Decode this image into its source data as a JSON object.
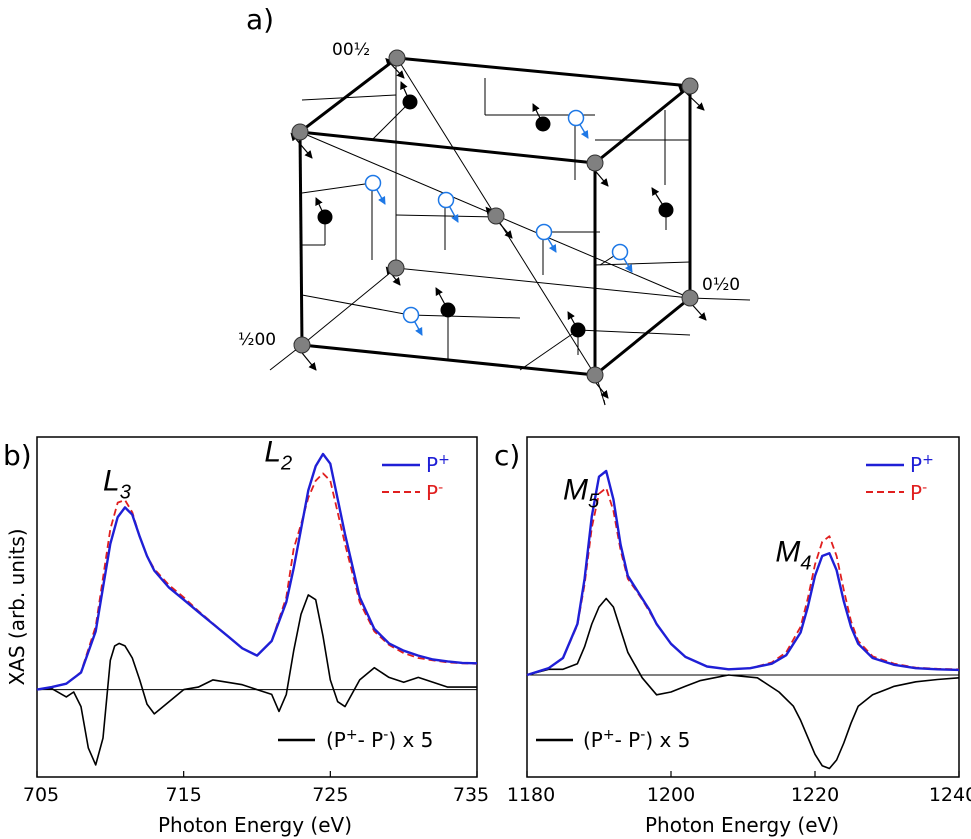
{
  "figure": {
    "cube": {
      "panel_label": "a)",
      "axis_label_c": "00½",
      "axis_label_b": "0½0",
      "axis_label_a": "½00",
      "colors": {
        "gray_atom": "#808080",
        "black_atom": "#000000",
        "open_atom": "#1e78e6"
      }
    },
    "legend": {
      "p_plus": "P",
      "p_plus_sup": "+",
      "p_minus": "P",
      "p_minus_sup": "-",
      "diff_prefix": "(P",
      "diff_mid": "- P",
      "diff_suffix": ") x 5",
      "diff_sup_plus": "+",
      "diff_sup_minus": "-"
    },
    "colors": {
      "p_plus": "#1f1fd6",
      "p_minus": "#e01f1f",
      "diff": "#000000"
    }
  },
  "chart_data": [
    {
      "panel_label": "b)",
      "type": "line",
      "xlabel": "Photon Energy (eV)",
      "ylabel": "XAS (arb. units)",
      "xlim": [
        705,
        735
      ],
      "ylim": [
        -1.8,
        5.2
      ],
      "xticks": [
        705,
        715,
        725,
        735
      ],
      "peaks": [
        {
          "label": "L",
          "sub": "3",
          "x": 709.5,
          "y": 4.1
        },
        {
          "label": "L",
          "sub": "2",
          "x": 720.5,
          "y": 4.7
        }
      ],
      "series": [
        {
          "name": "P+",
          "x": [
            705,
            706,
            707,
            708,
            709,
            709.5,
            710,
            710.5,
            711,
            711.5,
            712,
            712.5,
            713,
            714,
            715,
            716,
            717,
            718,
            719,
            720,
            721,
            722,
            722.5,
            723,
            723.5,
            724,
            724.5,
            725,
            726,
            727,
            728,
            729,
            730,
            731,
            732,
            733,
            734,
            735
          ],
          "values": [
            0.0,
            0.05,
            0.12,
            0.35,
            1.2,
            2.1,
            3.0,
            3.55,
            3.75,
            3.6,
            3.15,
            2.75,
            2.45,
            2.1,
            1.85,
            1.6,
            1.35,
            1.1,
            0.85,
            0.7,
            1.0,
            1.8,
            2.5,
            3.3,
            4.1,
            4.6,
            4.85,
            4.65,
            3.2,
            1.9,
            1.25,
            0.95,
            0.8,
            0.7,
            0.62,
            0.58,
            0.55,
            0.54
          ]
        },
        {
          "name": "P-",
          "x": [
            705,
            706,
            707,
            708,
            709,
            709.5,
            710,
            710.5,
            711,
            711.5,
            712,
            712.5,
            713,
            714,
            715,
            716,
            717,
            718,
            719,
            720,
            721,
            722,
            722.5,
            723,
            723.5,
            724,
            724.5,
            725,
            726,
            727,
            728,
            729,
            730,
            731,
            732,
            733,
            734,
            735
          ],
          "values": [
            0.0,
            0.05,
            0.12,
            0.36,
            1.3,
            2.3,
            3.3,
            3.85,
            3.9,
            3.65,
            3.15,
            2.75,
            2.48,
            2.15,
            1.9,
            1.62,
            1.36,
            1.1,
            0.85,
            0.7,
            1.0,
            1.9,
            2.9,
            3.4,
            3.95,
            4.3,
            4.45,
            4.3,
            3.0,
            1.8,
            1.2,
            0.92,
            0.75,
            0.65,
            0.6,
            0.56,
            0.54,
            0.53
          ]
        },
        {
          "name": "(P+ - P-) x 5",
          "x": [
            705,
            706,
            707,
            707.5,
            708,
            708.5,
            709,
            709.5,
            710,
            710.3,
            710.6,
            711,
            711.5,
            712,
            712.5,
            713,
            714,
            715,
            716,
            717,
            718,
            719,
            720,
            721,
            721.5,
            722,
            722.5,
            723,
            723.5,
            724,
            724.5,
            725,
            725.5,
            726,
            727,
            728,
            729,
            730,
            731,
            732,
            733,
            734,
            735
          ],
          "values": [
            0.0,
            0.02,
            -0.15,
            -0.05,
            -0.35,
            -1.2,
            -1.55,
            -1.0,
            0.6,
            0.9,
            0.95,
            0.9,
            0.65,
            0.2,
            -0.3,
            -0.5,
            -0.25,
            0.0,
            0.05,
            0.2,
            0.15,
            0.1,
            0.0,
            -0.1,
            -0.45,
            -0.1,
            0.8,
            1.55,
            1.95,
            1.85,
            1.1,
            0.2,
            -0.25,
            -0.35,
            0.2,
            0.45,
            0.25,
            0.15,
            0.25,
            0.15,
            0.05,
            0.05,
            0.05
          ]
        }
      ]
    },
    {
      "panel_label": "c)",
      "type": "line",
      "xlabel": "Photon Energy (eV)",
      "ylabel": "",
      "xlim": [
        1180,
        1240
      ],
      "ylim": [
        -1.8,
        4.2
      ],
      "xticks": [
        1180,
        1200,
        1220,
        1240
      ],
      "peaks": [
        {
          "label": "M",
          "sub": "5",
          "x": 1185,
          "y": 3.1
        },
        {
          "label": "M",
          "sub": "4",
          "x": 1214.5,
          "y": 2.0
        }
      ],
      "series": [
        {
          "name": "P+",
          "x": [
            1180,
            1183,
            1185,
            1187,
            1188,
            1189,
            1190,
            1191,
            1192,
            1193,
            1194,
            1195,
            1196,
            1197,
            1198,
            1200,
            1202,
            1205,
            1208,
            1211,
            1214,
            1216,
            1218,
            1219,
            1220,
            1221,
            1222,
            1223,
            1224,
            1225,
            1226,
            1228,
            1231,
            1234,
            1237,
            1240
          ],
          "values": [
            0.0,
            0.12,
            0.3,
            0.9,
            1.7,
            2.8,
            3.5,
            3.6,
            3.1,
            2.3,
            1.75,
            1.55,
            1.35,
            1.15,
            0.9,
            0.55,
            0.32,
            0.15,
            0.1,
            0.12,
            0.2,
            0.35,
            0.75,
            1.2,
            1.75,
            2.1,
            2.15,
            1.85,
            1.3,
            0.85,
            0.55,
            0.3,
            0.18,
            0.12,
            0.1,
            0.09
          ]
        },
        {
          "name": "P-",
          "x": [
            1180,
            1183,
            1185,
            1187,
            1188,
            1189,
            1190,
            1191,
            1192,
            1193,
            1194,
            1195,
            1196,
            1197,
            1198,
            1200,
            1202,
            1205,
            1208,
            1211,
            1214,
            1216,
            1218,
            1219,
            1220,
            1221,
            1222,
            1223,
            1224,
            1225,
            1226,
            1228,
            1231,
            1234,
            1237,
            1240
          ],
          "values": [
            0.0,
            0.12,
            0.3,
            0.88,
            1.6,
            2.6,
            3.2,
            3.3,
            2.9,
            2.2,
            1.7,
            1.52,
            1.33,
            1.12,
            0.9,
            0.55,
            0.32,
            0.15,
            0.1,
            0.12,
            0.22,
            0.4,
            0.85,
            1.35,
            1.95,
            2.35,
            2.45,
            2.1,
            1.5,
            0.95,
            0.6,
            0.33,
            0.2,
            0.13,
            0.11,
            0.1
          ]
        },
        {
          "name": "(P+ - P-) x 5",
          "x": [
            1180,
            1183,
            1185,
            1187,
            1188,
            1189,
            1190,
            1191,
            1192,
            1193,
            1194,
            1196,
            1198,
            1200,
            1202,
            1204,
            1206,
            1208,
            1212,
            1215,
            1217,
            1218,
            1219,
            1220,
            1221,
            1222,
            1223,
            1224,
            1225,
            1226,
            1228,
            1231,
            1234,
            1237,
            1240
          ],
          "values": [
            0.0,
            0.1,
            0.1,
            0.2,
            0.5,
            0.9,
            1.2,
            1.35,
            1.2,
            0.8,
            0.4,
            -0.05,
            -0.35,
            -0.3,
            -0.2,
            -0.1,
            -0.05,
            0.0,
            -0.05,
            -0.3,
            -0.55,
            -0.8,
            -1.1,
            -1.4,
            -1.6,
            -1.65,
            -1.5,
            -1.2,
            -0.85,
            -0.55,
            -0.35,
            -0.2,
            -0.12,
            -0.08,
            -0.05
          ]
        }
      ]
    }
  ]
}
